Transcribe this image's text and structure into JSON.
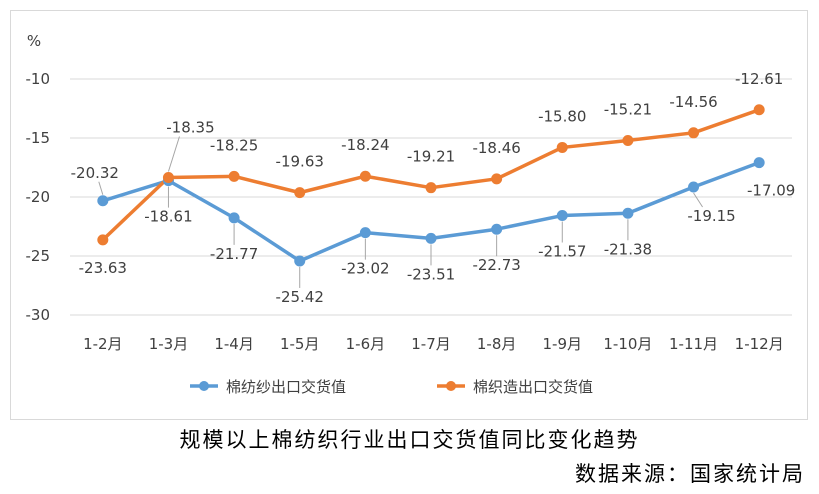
{
  "chart_data": {
    "type": "line",
    "unit_label": "%",
    "categories": [
      "1-2月",
      "1-3月",
      "1-4月",
      "1-5月",
      "1-6月",
      "1-7月",
      "1-8月",
      "1-9月",
      "1-10月",
      "1-11月",
      "1-12月"
    ],
    "ylim": [
      -30,
      -10
    ],
    "yticks": [
      -10,
      -15,
      -20,
      -25,
      -30
    ],
    "grid": true,
    "legend_position": "bottom",
    "series": [
      {
        "name": "棉纺纱出口交货值",
        "color": "#5b9bd5",
        "values": [
          -20.32,
          -18.61,
          -21.77,
          -25.42,
          -23.02,
          -23.51,
          -22.73,
          -21.57,
          -21.38,
          -19.15,
          -17.09
        ],
        "labels": [
          "-20.32",
          "-18.61",
          "-21.77",
          "-25.42",
          "-23.02",
          "-23.51",
          "-22.73",
          "-21.57",
          "-21.38",
          "-19.15",
          "-17.09"
        ]
      },
      {
        "name": "棉织造出口交货值",
        "color": "#ed7d31",
        "values": [
          -23.63,
          -18.35,
          -18.25,
          -19.63,
          -18.24,
          -19.21,
          -18.46,
          -15.8,
          -15.21,
          -14.56,
          -12.61
        ],
        "labels": [
          "-23.63",
          "-18.35",
          "-18.25",
          "-19.63",
          "-18.24",
          "-19.21",
          "-18.46",
          "-15.80",
          "-15.21",
          "-14.56",
          "-12.61"
        ]
      }
    ]
  },
  "caption": {
    "title": "规模以上棉纺织行业出口交货值同比变化趋势",
    "source": "数据来源：国家统计局"
  }
}
